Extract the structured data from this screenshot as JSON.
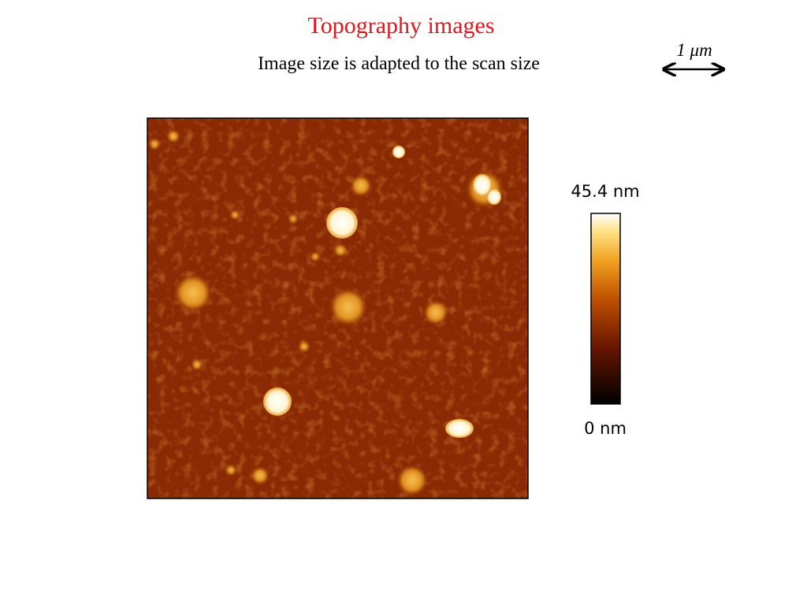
{
  "header": {
    "title": "Topography images",
    "subtitle": "Image size is adapted to the scan size"
  },
  "scale_bar": {
    "label": "1 μm"
  },
  "colorbar": {
    "max_label": "45.4 nm",
    "min_label": "0 nm"
  }
}
